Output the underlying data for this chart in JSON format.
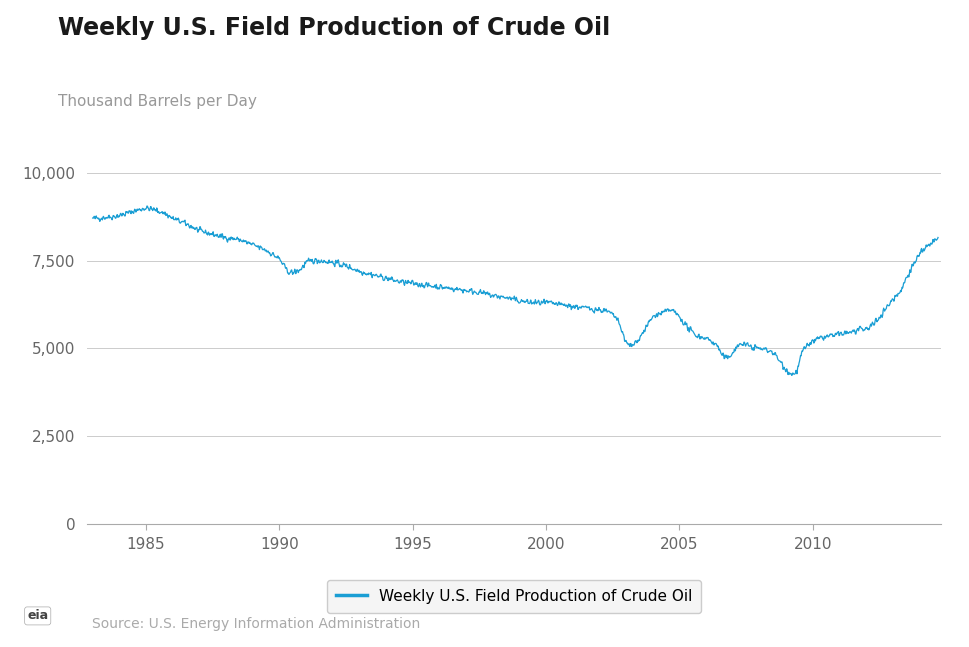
{
  "title": "Weekly U.S. Field Production of Crude Oil",
  "ylabel": "Thousand Barrels per Day",
  "legend_label": "Weekly U.S. Field Production of Crude Oil",
  "source_text": "Source: U.S. Energy Information Administration",
  "line_color": "#1a9ed4",
  "line_width": 0.9,
  "ylim": [
    0,
    10500
  ],
  "yticks": [
    0,
    2500,
    5000,
    7500,
    10000
  ],
  "ytick_labels": [
    "0",
    "2,500",
    "5,000",
    "7,500",
    "10,000"
  ],
  "background_color": "#ffffff",
  "grid_color": "#cccccc",
  "title_fontsize": 17,
  "ylabel_fontsize": 11,
  "tick_fontsize": 11,
  "legend_fontsize": 11,
  "source_fontsize": 10,
  "start_year": 1983.0,
  "end_year": 2014.7,
  "xtick_positions": [
    1985,
    1990,
    1995,
    2000,
    2005,
    2010
  ],
  "anchors_x": [
    1983.0,
    1983.3,
    1983.7,
    1984.0,
    1984.5,
    1985.0,
    1985.3,
    1985.7,
    1986.0,
    1986.5,
    1987.0,
    1987.5,
    1988.0,
    1988.5,
    1989.0,
    1989.5,
    1989.8,
    1990.0,
    1990.3,
    1990.5,
    1990.8,
    1991.0,
    1991.3,
    1991.5,
    1992.0,
    1992.5,
    1993.0,
    1993.5,
    1994.0,
    1994.5,
    1995.0,
    1995.5,
    1996.0,
    1996.5,
    1997.0,
    1997.5,
    1998.0,
    1998.5,
    1999.0,
    1999.5,
    2000.0,
    2000.5,
    2001.0,
    2001.5,
    2002.0,
    2002.3,
    2002.6,
    2002.8,
    2003.0,
    2003.2,
    2003.5,
    2004.0,
    2004.3,
    2004.5,
    2004.7,
    2005.0,
    2005.3,
    2005.5,
    2005.7,
    2006.0,
    2006.2,
    2006.4,
    2006.6,
    2006.8,
    2007.0,
    2007.3,
    2007.5,
    2007.7,
    2008.0,
    2008.3,
    2008.5,
    2008.7,
    2009.0,
    2009.2,
    2009.4,
    2009.6,
    2009.8,
    2010.0,
    2010.3,
    2010.6,
    2011.0,
    2011.3,
    2011.6,
    2012.0,
    2012.3,
    2012.5,
    2012.7,
    2013.0,
    2013.3,
    2013.5,
    2013.7,
    2014.0,
    2014.3,
    2014.6
  ],
  "anchors_y": [
    8700,
    8720,
    8750,
    8780,
    8900,
    9000,
    8950,
    8850,
    8700,
    8550,
    8350,
    8250,
    8150,
    8100,
    7950,
    7800,
    7650,
    7550,
    7200,
    7150,
    7250,
    7450,
    7500,
    7500,
    7450,
    7350,
    7200,
    7100,
    7000,
    6900,
    6850,
    6800,
    6750,
    6700,
    6650,
    6600,
    6500,
    6450,
    6350,
    6300,
    6300,
    6250,
    6200,
    6150,
    6100,
    6050,
    5900,
    5600,
    5150,
    5050,
    5300,
    5900,
    6000,
    6050,
    6100,
    5900,
    5600,
    5450,
    5350,
    5300,
    5200,
    5100,
    4800,
    4700,
    4900,
    5150,
    5100,
    5050,
    5000,
    4950,
    4900,
    4700,
    4400,
    4250,
    4350,
    4900,
    5100,
    5200,
    5300,
    5350,
    5400,
    5450,
    5500,
    5550,
    5700,
    5900,
    6100,
    6400,
    6650,
    7000,
    7300,
    7700,
    7900,
    8100
  ]
}
